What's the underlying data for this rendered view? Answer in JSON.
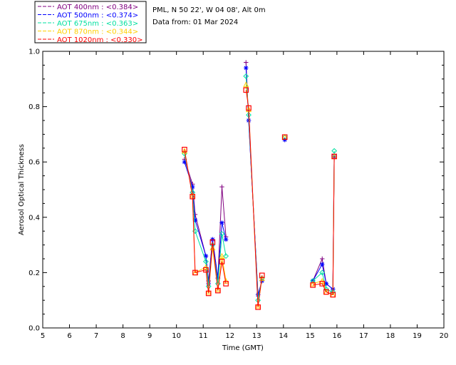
{
  "chart_data": {
    "type": "line",
    "title": "PML, N 50 22', W 04 08', Alt 0m",
    "subtitle": "Data from: 01 Mar 2024",
    "xlabel": "Time (GMT)",
    "ylabel": "Aerosol Optical Thickness",
    "xlim": [
      5,
      20
    ],
    "ylim": [
      0.0,
      1.0
    ],
    "xticks": [
      "5",
      "6",
      "7",
      "8",
      "9",
      "10",
      "11",
      "12",
      "13",
      "14",
      "15",
      "16",
      "17",
      "18",
      "19",
      "20"
    ],
    "yticks": [
      "0.0",
      "0.2",
      "0.4",
      "0.6",
      "0.8",
      "1.0"
    ],
    "grid": false,
    "legend_position": "top-left, outside plot",
    "series": [
      {
        "name": "AOT 400nm",
        "legend_label": "AOT  400nm : <0.384>",
        "color": "#800080",
        "marker": "plus",
        "points": [
          [
            10.3,
            0.61
          ],
          [
            10.6,
            0.52
          ],
          [
            10.7,
            0.41
          ],
          [
            11.1,
            0.26
          ],
          [
            11.2,
            0.17
          ],
          [
            11.35,
            0.32
          ],
          [
            11.55,
            0.18
          ],
          [
            11.7,
            0.51
          ],
          [
            11.85,
            0.33
          ],
          [
            12.6,
            0.96
          ],
          [
            12.7,
            0.75
          ],
          [
            13.05,
            0.12
          ],
          [
            13.2,
            0.17
          ],
          [
            14.05,
            0.68
          ],
          [
            15.1,
            0.17
          ],
          [
            15.45,
            0.25
          ],
          [
            15.6,
            0.16
          ],
          [
            15.85,
            0.14
          ],
          [
            15.9,
            0.62
          ]
        ]
      },
      {
        "name": "AOT 500nm",
        "legend_label": "AOT  500nm : <0.374>",
        "color": "#0000ff",
        "marker": "asterisk",
        "points": [
          [
            10.3,
            0.6
          ],
          [
            10.6,
            0.51
          ],
          [
            10.7,
            0.39
          ],
          [
            11.1,
            0.26
          ],
          [
            11.2,
            0.16
          ],
          [
            11.35,
            0.32
          ],
          [
            11.55,
            0.18
          ],
          [
            11.7,
            0.38
          ],
          [
            11.85,
            0.32
          ],
          [
            12.6,
            0.94
          ],
          [
            12.7,
            0.75
          ],
          [
            13.05,
            0.12
          ],
          [
            13.2,
            0.17
          ],
          [
            14.05,
            0.68
          ],
          [
            15.1,
            0.17
          ],
          [
            15.45,
            0.23
          ],
          [
            15.6,
            0.16
          ],
          [
            15.85,
            0.14
          ],
          [
            15.9,
            0.62
          ]
        ]
      },
      {
        "name": "AOT 675nm",
        "legend_label": "AOT  675nm : <0.363>",
        "color": "#00e0a0",
        "marker": "diamond",
        "points": [
          [
            10.3,
            0.63
          ],
          [
            10.6,
            0.49
          ],
          [
            10.7,
            0.35
          ],
          [
            11.1,
            0.24
          ],
          [
            11.2,
            0.15
          ],
          [
            11.35,
            0.3
          ],
          [
            11.55,
            0.16
          ],
          [
            11.7,
            0.34
          ],
          [
            11.85,
            0.26
          ],
          [
            12.6,
            0.91
          ],
          [
            12.7,
            0.77
          ],
          [
            13.05,
            0.1
          ],
          [
            13.2,
            0.18
          ],
          [
            14.05,
            0.69
          ],
          [
            15.1,
            0.17
          ],
          [
            15.45,
            0.2
          ],
          [
            15.6,
            0.14
          ],
          [
            15.85,
            0.13
          ],
          [
            15.9,
            0.64
          ]
        ]
      },
      {
        "name": "AOT 870nm",
        "legend_label": "AOT  870nm : <0.344>",
        "color": "#ffd000",
        "marker": "triangle",
        "points": [
          [
            10.3,
            0.64
          ],
          [
            10.6,
            0.48
          ],
          [
            10.7,
            0.2
          ],
          [
            11.1,
            0.22
          ],
          [
            11.2,
            0.13
          ],
          [
            11.35,
            0.29
          ],
          [
            11.55,
            0.14
          ],
          [
            11.7,
            0.26
          ],
          [
            11.85,
            0.17
          ],
          [
            12.6,
            0.88
          ],
          [
            12.7,
            0.79
          ],
          [
            13.05,
            0.08
          ],
          [
            13.2,
            0.18
          ],
          [
            14.05,
            0.69
          ],
          [
            15.1,
            0.16
          ],
          [
            15.45,
            0.17
          ],
          [
            15.6,
            0.13
          ],
          [
            15.85,
            0.12
          ],
          [
            15.9,
            0.62
          ]
        ]
      },
      {
        "name": "AOT 1020nm",
        "legend_label": "AOT 1020nm : <0.330>",
        "color": "#ff0000",
        "marker": "square",
        "points": [
          [
            10.3,
            0.645
          ],
          [
            10.6,
            0.475
          ],
          [
            10.7,
            0.2
          ],
          [
            11.1,
            0.21
          ],
          [
            11.2,
            0.125
          ],
          [
            11.35,
            0.31
          ],
          [
            11.55,
            0.135
          ],
          [
            11.7,
            0.24
          ],
          [
            11.85,
            0.16
          ],
          [
            12.6,
            0.86
          ],
          [
            12.7,
            0.795
          ],
          [
            13.05,
            0.075
          ],
          [
            13.2,
            0.19
          ],
          [
            14.05,
            0.69
          ],
          [
            15.1,
            0.155
          ],
          [
            15.45,
            0.16
          ],
          [
            15.6,
            0.13
          ],
          [
            15.85,
            0.12
          ],
          [
            15.9,
            0.62
          ]
        ]
      }
    ]
  }
}
